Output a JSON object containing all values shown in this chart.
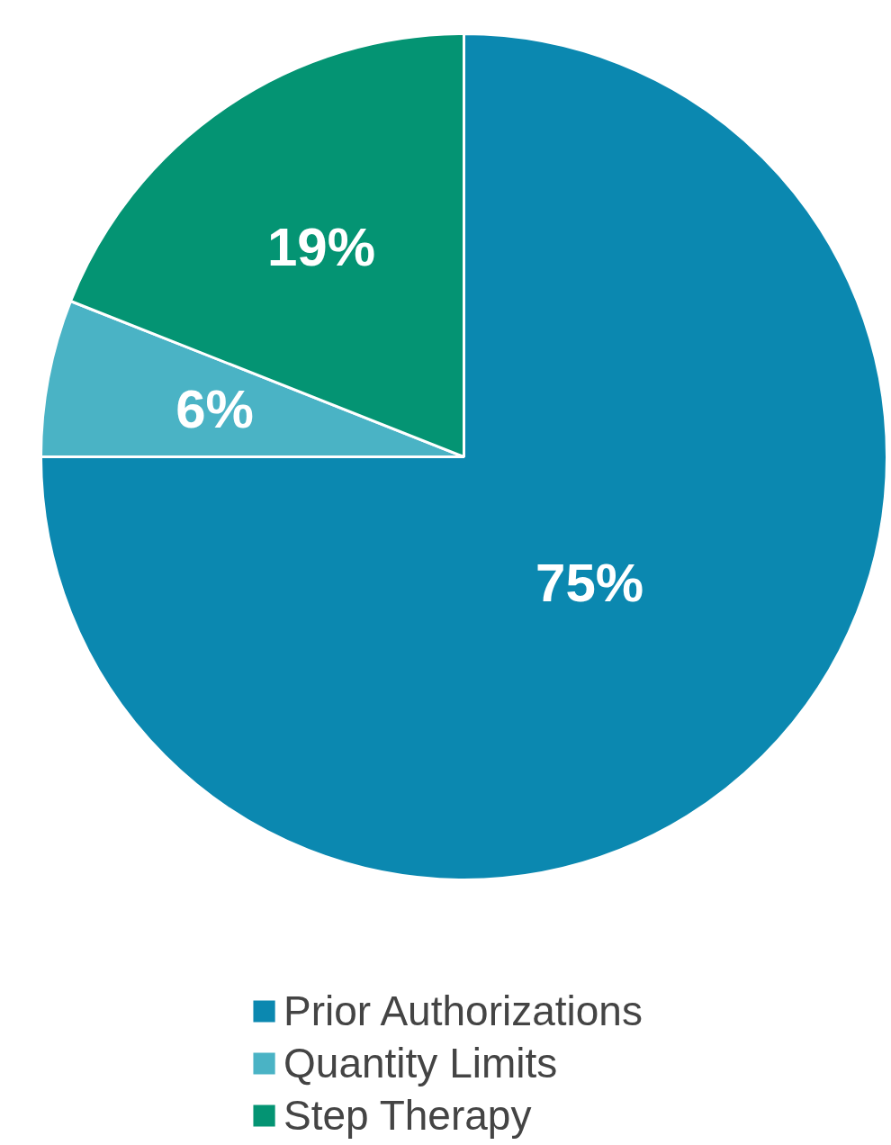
{
  "chart_data": {
    "type": "pie",
    "categories": [
      "Prior Authorizations",
      "Quantity Limits",
      "Step Therapy"
    ],
    "values": [
      75,
      6,
      19
    ],
    "colors": [
      "#0b88b0",
      "#4ab3c5",
      "#049473"
    ],
    "value_labels": [
      "75%",
      "6%",
      "19%"
    ],
    "legend": "bottom"
  }
}
